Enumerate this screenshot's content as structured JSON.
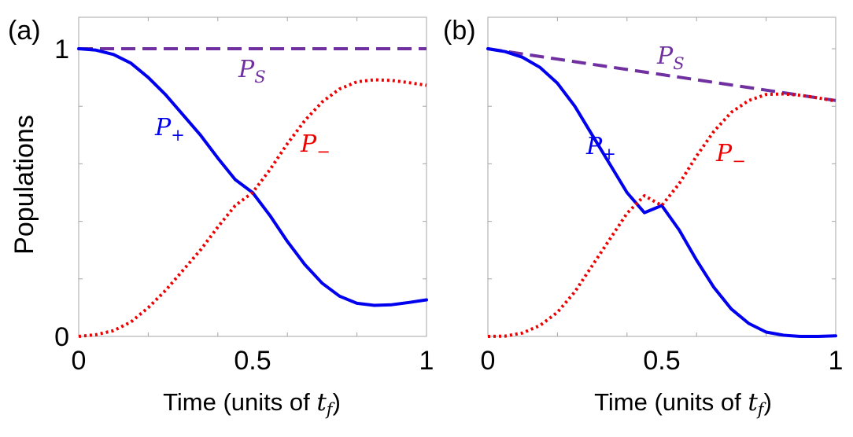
{
  "figure": {
    "ylabel": "Populations",
    "xlabel_prefix": "Time (units of ",
    "xlabel_var": "t",
    "xlabel_var_sub": "f",
    "xlabel_suffix": ")"
  },
  "colors": {
    "blue": "#0000ee",
    "red": "#ee0000",
    "purple": "#7030a0"
  },
  "chart_data": [
    {
      "type": "line",
      "panel_label": "(a)",
      "xlim": [
        0,
        1
      ],
      "ylim": [
        0,
        1
      ],
      "x_tick_labels": [
        "0",
        "0.5",
        "1"
      ],
      "y_tick_labels": [
        "0",
        "1"
      ],
      "x": [
        0,
        0.05,
        0.1,
        0.15,
        0.2,
        0.25,
        0.3,
        0.35,
        0.4,
        0.45,
        0.5,
        0.55,
        0.6,
        0.65,
        0.7,
        0.75,
        0.8,
        0.85,
        0.9,
        0.95,
        1.0
      ],
      "series": [
        {
          "name": "P_S",
          "label": "P",
          "label_sub": "S",
          "color": "#7030a0",
          "style": "dashed",
          "values": [
            1,
            1,
            1,
            1,
            1,
            1,
            1,
            1,
            1,
            1,
            1,
            1,
            1,
            1,
            1,
            1,
            1,
            1,
            1,
            1,
            1
          ]
        },
        {
          "name": "P_+",
          "label": "P",
          "label_sub": "+",
          "color": "#0000ee",
          "style": "solid",
          "values": [
            1.0,
            0.995,
            0.98,
            0.95,
            0.9,
            0.84,
            0.77,
            0.7,
            0.62,
            0.545,
            0.5,
            0.42,
            0.33,
            0.25,
            0.185,
            0.14,
            0.115,
            0.108,
            0.11,
            0.118,
            0.127
          ]
        },
        {
          "name": "P_-",
          "label": "P",
          "label_sub": "−",
          "color": "#ee0000",
          "style": "dotted",
          "values": [
            0.0,
            0.006,
            0.02,
            0.05,
            0.1,
            0.16,
            0.23,
            0.3,
            0.38,
            0.455,
            0.5,
            0.58,
            0.67,
            0.75,
            0.815,
            0.86,
            0.885,
            0.892,
            0.89,
            0.882,
            0.873
          ]
        }
      ]
    },
    {
      "type": "line",
      "panel_label": "(b)",
      "xlim": [
        0,
        1
      ],
      "ylim": [
        0,
        1
      ],
      "x_tick_labels": [
        "0",
        "0.5",
        "1"
      ],
      "y_tick_labels": [],
      "x": [
        0,
        0.05,
        0.1,
        0.15,
        0.2,
        0.25,
        0.3,
        0.35,
        0.4,
        0.45,
        0.5,
        0.55,
        0.6,
        0.65,
        0.7,
        0.75,
        0.8,
        0.85,
        0.9,
        0.95,
        1.0
      ],
      "series": [
        {
          "name": "P_S",
          "label": "P",
          "label_sub": "S",
          "color": "#7030a0",
          "style": "dashed",
          "values": [
            1.0,
            0.991,
            0.982,
            0.973,
            0.964,
            0.955,
            0.946,
            0.937,
            0.928,
            0.919,
            0.91,
            0.901,
            0.892,
            0.883,
            0.874,
            0.865,
            0.856,
            0.847,
            0.838,
            0.829,
            0.82
          ]
        },
        {
          "name": "P_+",
          "label": "P",
          "label_sub": "+",
          "color": "#0000ee",
          "style": "solid",
          "values": [
            1.0,
            0.99,
            0.97,
            0.935,
            0.88,
            0.8,
            0.7,
            0.6,
            0.5,
            0.43,
            0.455,
            0.37,
            0.265,
            0.17,
            0.095,
            0.045,
            0.015,
            0.004,
            0.0,
            0.0,
            0.002
          ]
        },
        {
          "name": "P_-",
          "label": "P",
          "label_sub": "−",
          "color": "#ee0000",
          "style": "dotted",
          "values": [
            0.0,
            0.001,
            0.012,
            0.038,
            0.084,
            0.155,
            0.246,
            0.337,
            0.428,
            0.489,
            0.455,
            0.531,
            0.627,
            0.713,
            0.779,
            0.82,
            0.841,
            0.843,
            0.838,
            0.829,
            0.818
          ]
        }
      ]
    }
  ]
}
